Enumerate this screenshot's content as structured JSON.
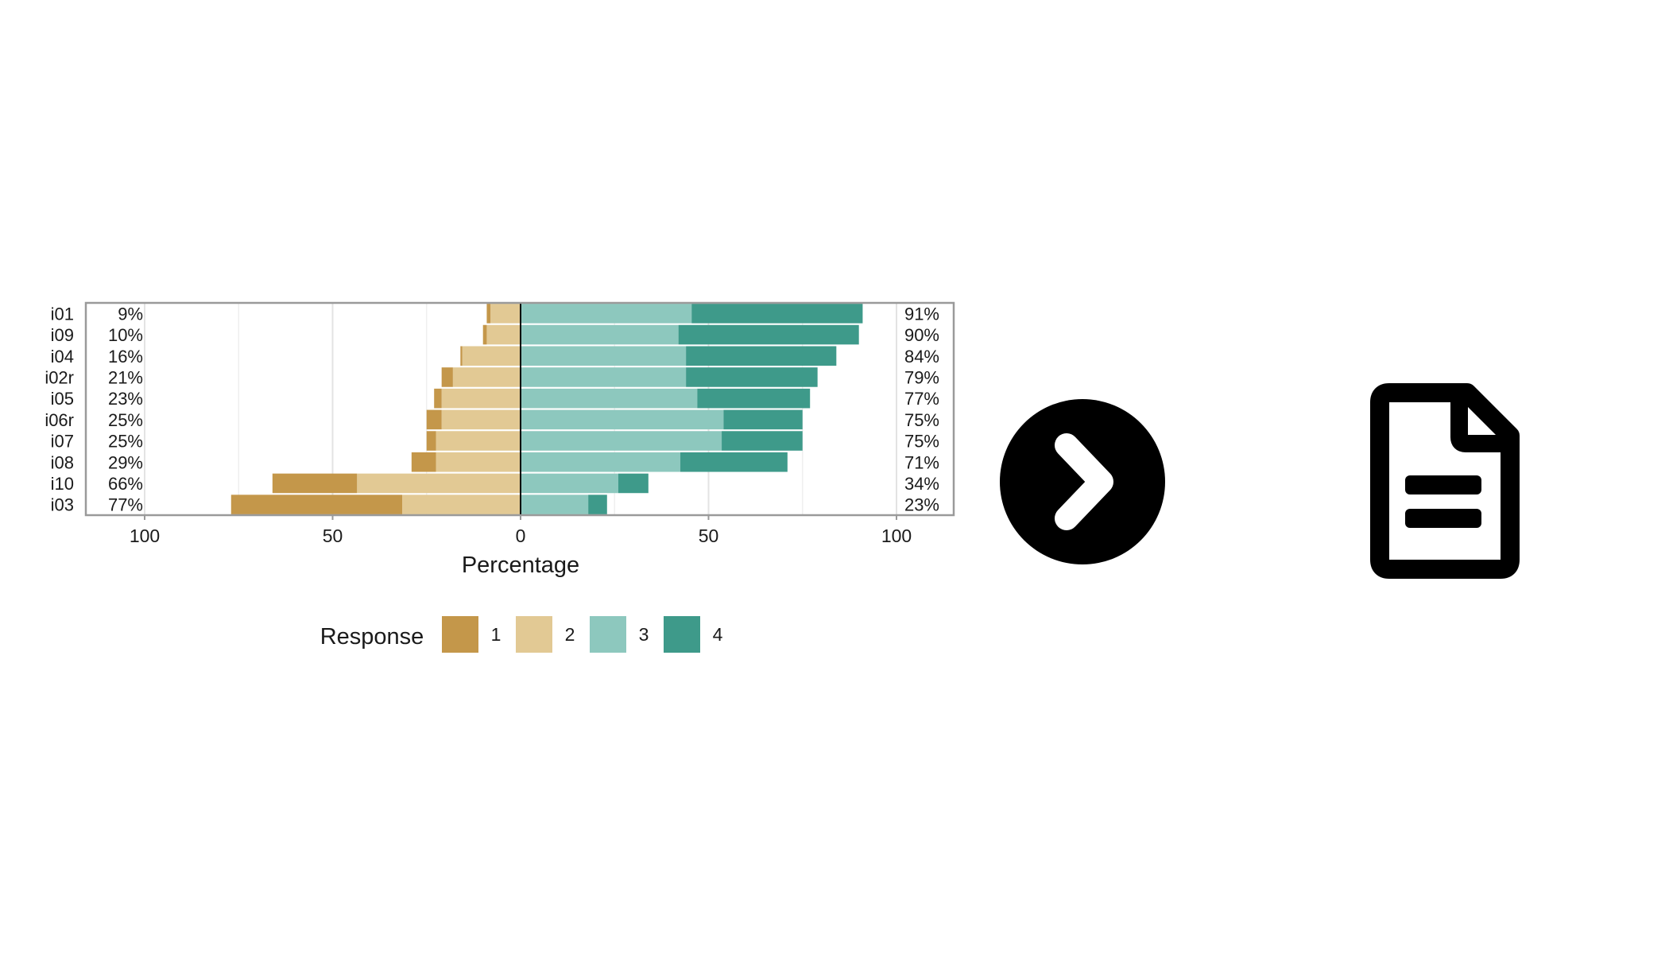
{
  "chart_data": {
    "type": "bar",
    "orientation": "horizontal",
    "stacked": "diverging",
    "title": "",
    "xlabel": "Percentage",
    "ylabel": "",
    "xlim": [
      -100,
      100
    ],
    "xticks": [
      -100,
      -50,
      0,
      50,
      100
    ],
    "xtick_labels": [
      "100",
      "50",
      "0",
      "50",
      "100"
    ],
    "grid": true,
    "legend": {
      "title": "Response",
      "placement": "bottom"
    },
    "categories": [
      "i01",
      "i09",
      "i04",
      "i02r",
      "i05",
      "i06r",
      "i07",
      "i08",
      "i10",
      "i03"
    ],
    "series": [
      {
        "name": "1",
        "color": "#C4974A",
        "values": [
          1,
          1,
          0.5,
          3,
          2,
          4,
          2.5,
          6.5,
          22.5,
          45.5
        ]
      },
      {
        "name": "2",
        "color": "#E2C994",
        "values": [
          8,
          9,
          15.5,
          18,
          21,
          21,
          22.5,
          22.5,
          43.5,
          31.5
        ]
      },
      {
        "name": "3",
        "color": "#8DC8BE",
        "values": [
          45.5,
          42,
          44,
          44,
          47,
          54,
          53.5,
          42.5,
          26,
          18
        ]
      },
      {
        "name": "4",
        "color": "#3E9A8A",
        "values": [
          45.5,
          48,
          40,
          35,
          30,
          21,
          21.5,
          28.5,
          8,
          5
        ]
      }
    ],
    "left_labels": [
      "9%",
      "10%",
      "16%",
      "21%",
      "23%",
      "25%",
      "25%",
      "29%",
      "66%",
      "77%"
    ],
    "right_labels": [
      "91%",
      "90%",
      "84%",
      "79%",
      "77%",
      "75%",
      "75%",
      "71%",
      "34%",
      "23%"
    ]
  },
  "icons": {
    "next": "chevron-right-circle-icon",
    "document": "document-icon"
  }
}
